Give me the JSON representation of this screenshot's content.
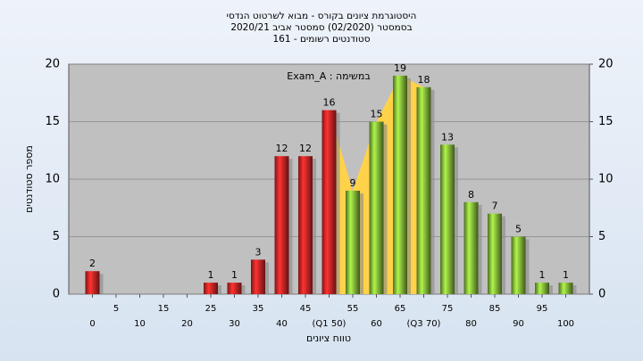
{
  "chart_data": {
    "type": "histogram",
    "title": "היסטוגרמת ציונים בקורס - מבוא לשרטוט הנדסי",
    "subtitle": "בסמסטר  (02/2020)  סמסטר אביב 2020/21",
    "subtitle2": "סטודנטים רשומים - 161",
    "annotation": "Exam_A : במשימה",
    "xlabel": "טווח ציונים",
    "ylabel": "מספר סטודנטים",
    "x": [
      0,
      5,
      10,
      15,
      20,
      25,
      30,
      35,
      40,
      45,
      50,
      55,
      60,
      65,
      70,
      75,
      80,
      85,
      90,
      95,
      100
    ],
    "values": [
      2,
      0,
      0,
      0,
      0,
      1,
      1,
      3,
      12,
      12,
      16,
      9,
      15,
      19,
      18,
      13,
      8,
      7,
      5,
      1,
      1
    ],
    "colors": [
      "#e02828",
      "#e02828",
      "#e02828",
      "#e02828",
      "#e02828",
      "#e02828",
      "#e02828",
      "#e02828",
      "#e02828",
      "#e02828",
      "#e02828",
      "#8cc43c",
      "#8cc43c",
      "#8cc43c",
      "#8cc43c",
      "#8cc43c",
      "#8cc43c",
      "#8cc43c",
      "#8cc43c",
      "#8cc43c",
      "#8cc43c"
    ],
    "band_color": "#ffd24a",
    "xlim": [
      -5,
      105
    ],
    "xticks": [
      0,
      5,
      10,
      15,
      20,
      25,
      30,
      35,
      40,
      45,
      {
        "value": 50,
        "label": "(Q1 50)"
      },
      55,
      60,
      65,
      {
        "value": 70,
        "label": "(Q3 70)"
      },
      75,
      80,
      85,
      90,
      95,
      100
    ],
    "ylim": [
      0,
      20
    ],
    "yticks": [
      0,
      5,
      10,
      15,
      20
    ],
    "y2lim": [
      0,
      20
    ],
    "y2ticks": [
      0,
      5,
      10,
      15,
      20
    ],
    "grid": true
  }
}
